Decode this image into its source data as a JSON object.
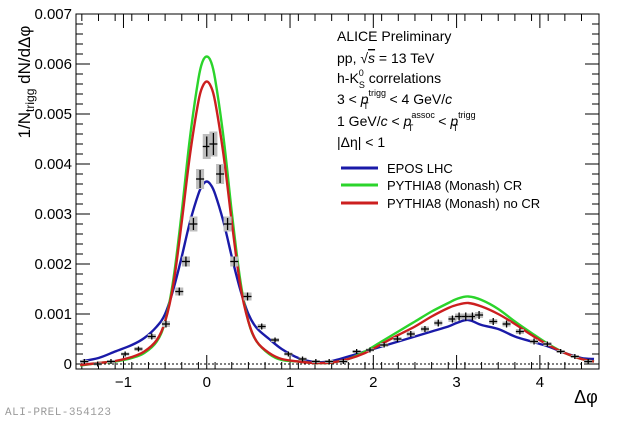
{
  "chart_data": {
    "type": "line",
    "xlabel": "Δφ",
    "ylabel": "1/N_trigg dN/dΔφ",
    "ylabel_main": "1/N",
    "ylabel_sub": "trigg",
    "ylabel_tail": " dN/dΔφ",
    "xlim": [
      -1.57,
      4.71
    ],
    "ylim": [
      -0.0001,
      0.007
    ],
    "xticks": [
      -1,
      0,
      1,
      2,
      3,
      4
    ],
    "xtick_labels": [
      "−1",
      "0",
      "1",
      "2",
      "3",
      "4"
    ],
    "yticks": [
      0,
      0.001,
      0.002,
      0.003,
      0.004,
      0.005,
      0.006,
      0.007
    ],
    "ytick_labels": [
      "0",
      "0.001",
      "0.002",
      "0.003",
      "0.004",
      "0.005",
      "0.006",
      "0.007"
    ],
    "annotations": {
      "title": "ALICE Preliminary",
      "line2_pre": "pp, ",
      "line2_sqrt": "√",
      "line2_s": "s",
      "line2_post": " = 13 TeV",
      "line3_pre": "h-K",
      "line3_sup": "0",
      "line3_sub": "S",
      "line3_post": " correlations",
      "line4_pre": "3 < ",
      "line4_p": "p",
      "line4_sup": "trigg",
      "line4_sub": "T",
      "line4_post": " < 4 GeV/",
      "line4_c": "c",
      "line5_pre": "1 GeV/",
      "line5_c": "c",
      "line5_mid": " < ",
      "line5_p1": "p",
      "line5_sup1": "assoc",
      "line5_sub1": "T",
      "line5_mid2": " < ",
      "line5_p2": "p",
      "line5_sup2": "trigg",
      "line5_sub2": "T",
      "line6": "|Δη| < 1"
    },
    "legend": [
      {
        "name": "EPOS LHC",
        "color": "#1a1aa8"
      },
      {
        "name": "PYTHIA8 (Monash) CR",
        "color": "#2bd42b"
      },
      {
        "name": "PYTHIA8 (Monash) no CR",
        "color": "#cc1f1f"
      }
    ],
    "data_points": {
      "name": "Data",
      "x": [
        -1.47,
        -1.31,
        -1.15,
        -0.98,
        -0.82,
        -0.66,
        -0.49,
        -0.33,
        -0.25,
        -0.16,
        -0.08,
        0.0,
        0.08,
        0.16,
        0.25,
        0.33,
        0.49,
        0.66,
        0.82,
        0.98,
        1.15,
        1.31,
        1.47,
        1.64,
        1.8,
        1.96,
        2.13,
        2.29,
        2.45,
        2.62,
        2.78,
        2.95,
        3.03,
        3.11,
        3.19,
        3.27,
        3.44,
        3.6,
        3.76,
        3.93,
        4.09,
        4.25,
        4.42,
        4.58
      ],
      "y": [
        5e-05,
        0.0,
        5e-05,
        0.0002,
        0.0003,
        0.00055,
        0.0008,
        0.00145,
        0.00205,
        0.0028,
        0.0037,
        0.00435,
        0.0044,
        0.0038,
        0.0028,
        0.00205,
        0.00135,
        0.00075,
        0.00048,
        0.0002,
        0.0001,
        5e-05,
        5e-05,
        5e-05,
        0.00025,
        0.00028,
        0.00038,
        0.0005,
        0.0006,
        0.0007,
        0.00082,
        0.0009,
        0.00095,
        0.00095,
        0.00095,
        0.00098,
        0.00085,
        0.0008,
        0.00065,
        0.00045,
        0.0004,
        0.00025,
        0.00015,
        5e-05
      ],
      "yerr": [
        5e-05,
        5e-05,
        5e-05,
        5e-05,
        5e-05,
        6e-05,
        7e-05,
        8e-05,
        0.0001,
        0.00012,
        0.00018,
        0.0002,
        0.00022,
        0.00018,
        0.00012,
        0.0001,
        8e-05,
        6e-05,
        5e-05,
        5e-05,
        5e-05,
        5e-05,
        5e-05,
        5e-05,
        5e-05,
        5e-05,
        5e-05,
        6e-05,
        6e-05,
        6e-05,
        7e-05,
        7e-05,
        8e-05,
        8e-05,
        8e-05,
        8e-05,
        7e-05,
        7e-05,
        6e-05,
        6e-05,
        5e-05,
        5e-05,
        5e-05,
        5e-05
      ],
      "syst": [
        3e-05,
        3e-05,
        3e-05,
        3e-05,
        4e-05,
        5e-05,
        6e-05,
        8e-05,
        0.0001,
        0.00015,
        0.0002,
        0.00025,
        0.00025,
        0.0002,
        0.00015,
        0.0001,
        8e-05,
        5e-05,
        4e-05,
        3e-05,
        3e-05,
        3e-05,
        3e-05,
        3e-05,
        3e-05,
        3e-05,
        4e-05,
        4e-05,
        5e-05,
        5e-05,
        5e-05,
        6e-05,
        6e-05,
        6e-05,
        6e-05,
        6e-05,
        5e-05,
        5e-05,
        5e-05,
        4e-05,
        4e-05,
        3e-05,
        3e-05,
        3e-05
      ]
    },
    "series": [
      {
        "name": "EPOS LHC",
        "color": "#1a1aa8",
        "x": [
          -1.52,
          -1.3,
          -1.1,
          -0.9,
          -0.75,
          -0.6,
          -0.5,
          -0.4,
          -0.3,
          -0.2,
          -0.1,
          -0.05,
          0.0,
          0.05,
          0.1,
          0.2,
          0.3,
          0.4,
          0.5,
          0.6,
          0.75,
          0.9,
          1.1,
          1.3,
          1.5,
          1.7,
          1.9,
          2.1,
          2.3,
          2.5,
          2.7,
          2.9,
          3.0,
          3.14,
          3.3,
          3.5,
          3.7,
          3.9,
          4.1,
          4.3,
          4.5,
          4.65
        ],
        "y": [
          5e-05,
          0.00012,
          0.00025,
          0.00038,
          0.00052,
          0.00075,
          0.001,
          0.0015,
          0.00215,
          0.00285,
          0.0034,
          0.00358,
          0.00365,
          0.00358,
          0.0034,
          0.00285,
          0.00215,
          0.0015,
          0.001,
          0.00072,
          0.0005,
          0.0003,
          0.00012,
          4e-05,
          6e-05,
          0.00015,
          0.00025,
          0.00035,
          0.00045,
          0.00055,
          0.00065,
          0.00075,
          0.00082,
          0.00088,
          0.00078,
          0.0007,
          0.00055,
          0.00045,
          0.00035,
          0.00022,
          0.00012,
          0.0001
        ]
      },
      {
        "name": "PYTHIA8 (Monash) CR",
        "color": "#2bd42b",
        "x": [
          -1.52,
          -1.3,
          -1.1,
          -0.9,
          -0.75,
          -0.6,
          -0.5,
          -0.4,
          -0.3,
          -0.2,
          -0.1,
          -0.05,
          0.0,
          0.05,
          0.1,
          0.2,
          0.3,
          0.4,
          0.5,
          0.6,
          0.75,
          0.9,
          1.1,
          1.3,
          1.5,
          1.7,
          1.9,
          2.1,
          2.3,
          2.5,
          2.7,
          2.9,
          3.0,
          3.14,
          3.3,
          3.5,
          3.7,
          3.9,
          4.1,
          4.3,
          4.5,
          4.65
        ],
        "y": [
          -3e-05,
          2e-05,
          5e-05,
          0.00012,
          0.00022,
          0.00045,
          0.00085,
          0.0017,
          0.00305,
          0.00455,
          0.0057,
          0.00605,
          0.00615,
          0.00605,
          0.0057,
          0.00455,
          0.00305,
          0.0017,
          0.00085,
          0.00045,
          0.0002,
          8e-05,
          5e-05,
          2e-05,
          3e-05,
          0.0001,
          0.00025,
          0.00045,
          0.00065,
          0.00085,
          0.00105,
          0.00122,
          0.0013,
          0.00135,
          0.00128,
          0.0011,
          0.00085,
          0.00062,
          0.0004,
          0.00022,
          0.0001,
          5e-05
        ]
      },
      {
        "name": "PYTHIA8 (Monash) no CR",
        "color": "#cc1f1f",
        "x": [
          -1.52,
          -1.3,
          -1.1,
          -0.9,
          -0.75,
          -0.6,
          -0.5,
          -0.4,
          -0.3,
          -0.2,
          -0.1,
          -0.05,
          0.0,
          0.05,
          0.1,
          0.2,
          0.3,
          0.4,
          0.5,
          0.6,
          0.75,
          0.9,
          1.1,
          1.3,
          1.5,
          1.7,
          1.9,
          2.1,
          2.3,
          2.5,
          2.7,
          2.9,
          3.0,
          3.14,
          3.3,
          3.5,
          3.7,
          3.9,
          4.1,
          4.3,
          4.5,
          4.65
        ],
        "y": [
          -2e-05,
          2e-05,
          6e-05,
          0.00014,
          0.00025,
          0.00048,
          0.00085,
          0.0016,
          0.00285,
          0.0042,
          0.00525,
          0.00555,
          0.00565,
          0.00555,
          0.00525,
          0.0042,
          0.00285,
          0.0016,
          0.00085,
          0.00045,
          0.00022,
          0.0001,
          5e-05,
          2e-05,
          3e-05,
          0.0001,
          0.00022,
          0.0004,
          0.00058,
          0.00075,
          0.00095,
          0.00112,
          0.00118,
          0.00122,
          0.00115,
          0.001,
          0.0008,
          0.00058,
          0.00038,
          0.00022,
          0.0001,
          5e-05
        ]
      }
    ]
  },
  "footer": {
    "label": "ALI-PREL-354123"
  }
}
